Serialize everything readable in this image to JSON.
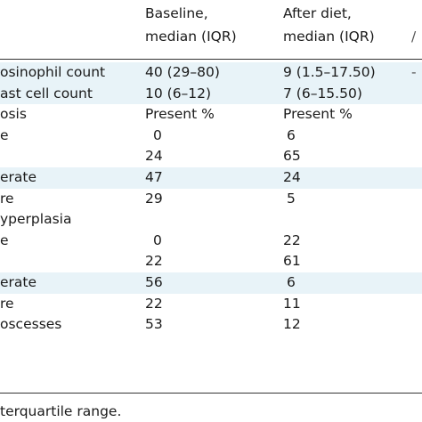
{
  "table": {
    "headers": {
      "baseline_line1": "Baseline,",
      "baseline_line2": "median (IQR)",
      "after_line1": "After diet,",
      "after_line2": "median (IQR)",
      "extra_line2": "/"
    },
    "rows": [
      {
        "label": "osinophil count",
        "baseline": "40 (29–80)",
        "after": "9 (1.5–17.50)",
        "extra": "-",
        "shaded": true
      },
      {
        "label": "ast cell count",
        "baseline": "10 (6–12)",
        "after": "7 (6–15.50)",
        "extra": "",
        "shaded": true
      },
      {
        "label": "osis",
        "baseline": "Present %",
        "after": "Present %",
        "extra": "",
        "shaded": false
      },
      {
        "label": "e",
        "baseline": "0",
        "after": "6",
        "extra": "",
        "shaded": false
      },
      {
        "label": "",
        "baseline": "24",
        "after": "65",
        "extra": "",
        "shaded": false
      },
      {
        "label": "erate",
        "baseline": "47",
        "after": "24",
        "extra": "",
        "shaded": true
      },
      {
        "label": "re",
        "baseline": "29",
        "after": "5",
        "extra": "",
        "shaded": false
      },
      {
        "label": "yperplasia",
        "baseline": "",
        "after": "",
        "extra": "",
        "shaded": false
      },
      {
        "label": "e",
        "baseline": "0",
        "after": "22",
        "extra": "",
        "shaded": false
      },
      {
        "label": "",
        "baseline": "22",
        "after": "61",
        "extra": "",
        "shaded": false
      },
      {
        "label": "erate",
        "baseline": "56",
        "after": "6",
        "extra": "",
        "shaded": true
      },
      {
        "label": "re",
        "baseline": "22",
        "after": "11",
        "extra": "",
        "shaded": false
      },
      {
        "label": "oscesses",
        "baseline": "53",
        "after": "12",
        "extra": "",
        "shaded": false
      }
    ],
    "footnote": "terquartile range."
  },
  "colors": {
    "shaded_row": "#e8f3f8",
    "rule": "#333333",
    "text": "#1a1a1a"
  }
}
